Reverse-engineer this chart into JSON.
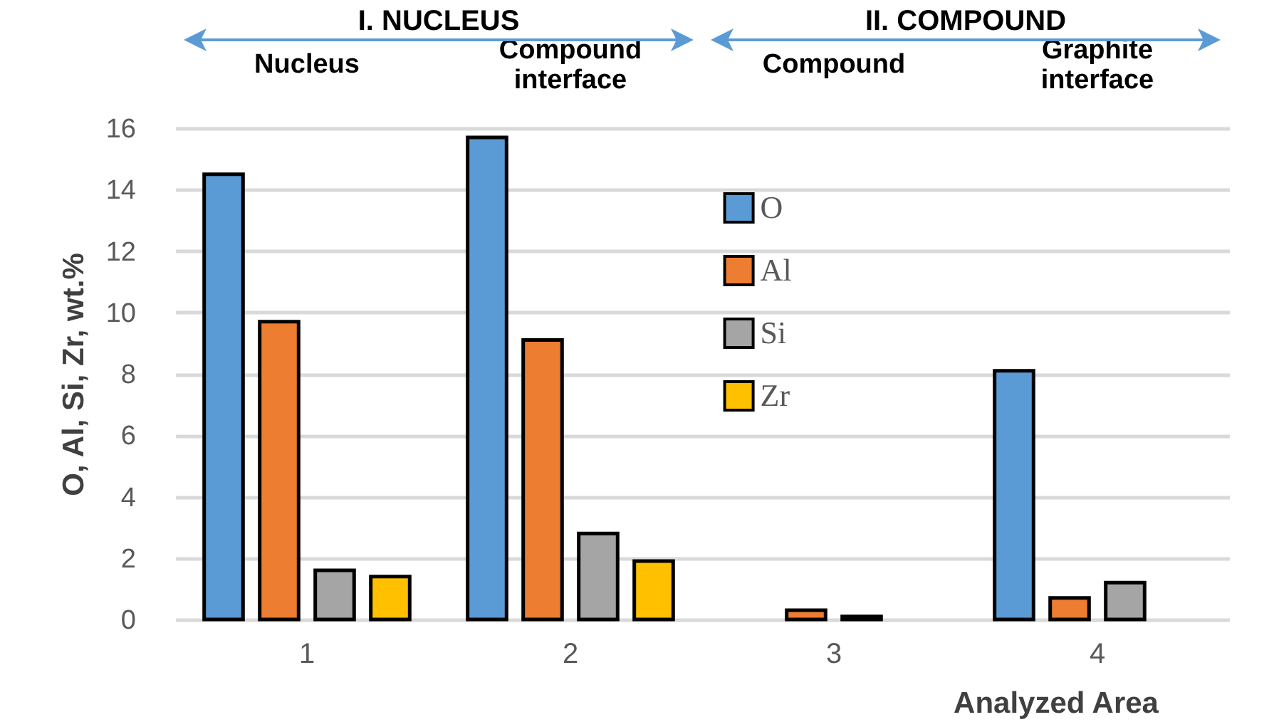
{
  "chart_data": {
    "type": "bar",
    "xlabel": "Analyzed Area",
    "ylabel": "O, Al, Si, Zr, wt.%",
    "categories": [
      "1",
      "2",
      "3",
      "4"
    ],
    "series": [
      {
        "name": "O",
        "color": "#5b9bd5",
        "values": [
          14.5,
          15.7,
          null,
          8.1
        ]
      },
      {
        "name": "Al",
        "color": "#ed7d31",
        "values": [
          9.7,
          9.1,
          0.3,
          0.7
        ]
      },
      {
        "name": "Si",
        "color": "#a5a5a5",
        "values": [
          1.6,
          2.8,
          0.1,
          1.2
        ]
      },
      {
        "name": "Zr",
        "color": "#ffc000",
        "values": [
          1.4,
          1.9,
          null,
          null
        ]
      }
    ],
    "ylim": [
      0,
      16
    ],
    "yticks": [
      0,
      2,
      4,
      6,
      8,
      10,
      12,
      14,
      16
    ],
    "grid": "y",
    "legend": "top",
    "annotations": [
      "I. NUCLEUS",
      "II. COMPOUND",
      "Nucleus",
      "Compound interface",
      "Compound",
      "Graphite interface"
    ]
  }
}
